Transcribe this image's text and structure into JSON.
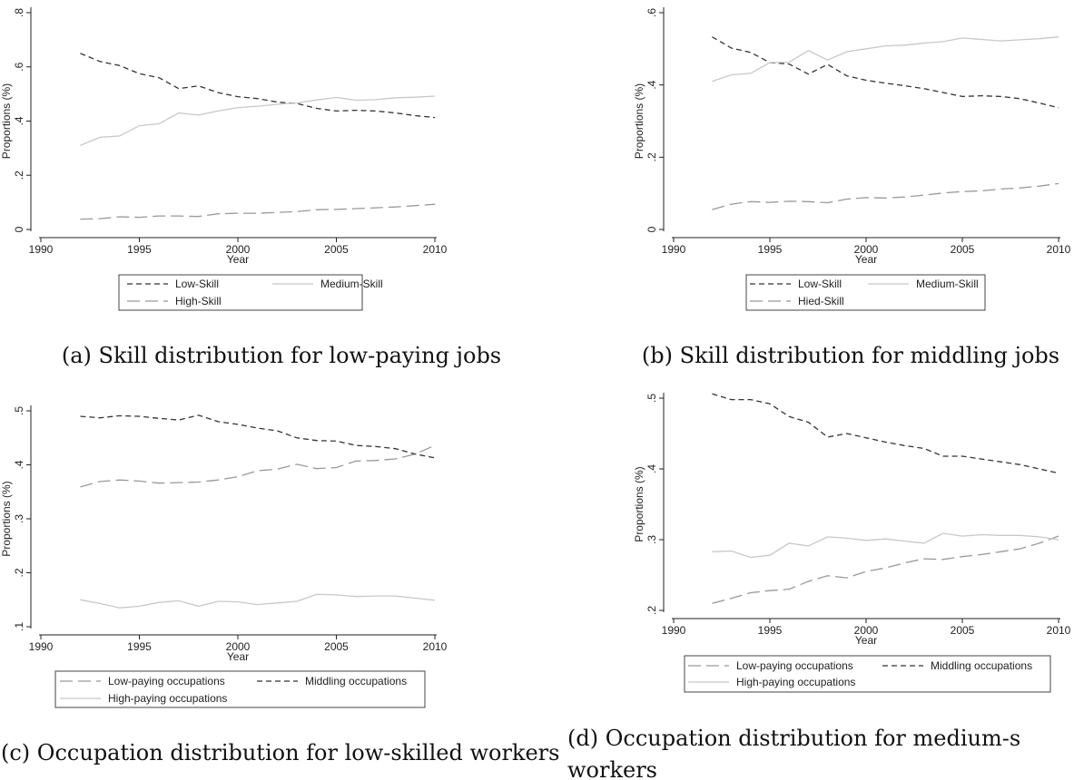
{
  "styles": {
    "dark_dash": "#333333",
    "light_solid": "#c8c8c8",
    "long_dash": "#999999"
  },
  "chart_data": [
    {
      "id": "a",
      "type": "line",
      "caption": "(a) Skill distribution for low-paying jobs",
      "xlabel": "Year",
      "ylabel": "Proportions (%)",
      "xlim": [
        1990,
        2010
      ],
      "ylim": [
        0,
        0.8
      ],
      "xticks": [
        1990,
        1995,
        2000,
        2005,
        2010
      ],
      "xtick_labels": [
        "1990",
        "1995",
        "2000",
        "2005",
        "2010"
      ],
      "yticks": [
        0,
        0.2,
        0.4,
        0.6,
        0.8
      ],
      "ytick_labels": [
        "0",
        ".2",
        ".4",
        ".6",
        ".8"
      ],
      "x": [
        1992,
        1993,
        1994,
        1995,
        1996,
        1997,
        1998,
        1999,
        2000,
        2001,
        2002,
        2003,
        2004,
        2005,
        2006,
        2007,
        2008,
        2009,
        2010
      ],
      "series": [
        {
          "name": "Low-Skill",
          "style": "dark_dash",
          "values": [
            0.65,
            0.62,
            0.605,
            0.575,
            0.56,
            0.52,
            0.53,
            0.505,
            0.49,
            0.483,
            0.47,
            0.465,
            0.447,
            0.437,
            0.44,
            0.437,
            0.43,
            0.42,
            0.413
          ]
        },
        {
          "name": "Medium-Skill",
          "style": "light_solid",
          "values": [
            0.31,
            0.34,
            0.345,
            0.383,
            0.39,
            0.43,
            0.422,
            0.437,
            0.45,
            0.455,
            0.462,
            0.467,
            0.478,
            0.487,
            0.477,
            0.479,
            0.486,
            0.488,
            0.492
          ]
        },
        {
          "name": "High-Skill",
          "style": "long_dash",
          "values": [
            0.038,
            0.04,
            0.047,
            0.045,
            0.05,
            0.05,
            0.048,
            0.058,
            0.06,
            0.06,
            0.063,
            0.066,
            0.073,
            0.074,
            0.077,
            0.08,
            0.083,
            0.088,
            0.093
          ]
        }
      ],
      "legend": [
        "Low-Skill",
        "Medium-Skill",
        "High-Skill"
      ]
    },
    {
      "id": "b",
      "type": "line",
      "caption": "(b) Skill distribution for middling jobs",
      "xlabel": "Year",
      "ylabel": "Proportions (%)",
      "xlim": [
        1990,
        2010
      ],
      "ylim": [
        0,
        0.6
      ],
      "xticks": [
        1990,
        1995,
        2000,
        2005,
        2010
      ],
      "xtick_labels": [
        "1990",
        "1995",
        "2000",
        "2005",
        "2010"
      ],
      "yticks": [
        0,
        0.2,
        0.4,
        0.6
      ],
      "ytick_labels": [
        "0",
        ".2",
        ".4",
        ".6"
      ],
      "x": [
        1992,
        1993,
        1994,
        1995,
        1996,
        1997,
        1998,
        1999,
        2000,
        2001,
        2002,
        2003,
        2004,
        2005,
        2006,
        2007,
        2008,
        2009,
        2010
      ],
      "series": [
        {
          "name": "Low-Skill",
          "style": "dark_dash",
          "values": [
            0.533,
            0.502,
            0.49,
            0.462,
            0.458,
            0.43,
            0.457,
            0.425,
            0.413,
            0.405,
            0.398,
            0.39,
            0.379,
            0.368,
            0.37,
            0.368,
            0.362,
            0.35,
            0.337
          ]
        },
        {
          "name": "Medium-Skill",
          "style": "light_solid",
          "values": [
            0.41,
            0.428,
            0.432,
            0.462,
            0.463,
            0.495,
            0.469,
            0.492,
            0.5,
            0.508,
            0.51,
            0.516,
            0.52,
            0.53,
            0.526,
            0.522,
            0.525,
            0.528,
            0.533
          ]
        },
        {
          "name": "Hied-Skill",
          "style": "long_dash",
          "values": [
            0.055,
            0.07,
            0.077,
            0.075,
            0.078,
            0.077,
            0.074,
            0.084,
            0.088,
            0.087,
            0.09,
            0.095,
            0.101,
            0.105,
            0.107,
            0.112,
            0.115,
            0.12,
            0.127
          ]
        }
      ],
      "legend": [
        "Low-Skill",
        "Medium-Skill",
        "Hied-Skill"
      ]
    },
    {
      "id": "c",
      "type": "line",
      "caption": "(c) Occupation distribution for low-skilled workers",
      "xlabel": "Year",
      "ylabel": "Proportions (%)",
      "xlim": [
        1990,
        2010
      ],
      "ylim": [
        0.1,
        0.5
      ],
      "xticks": [
        1990,
        1995,
        2000,
        2005,
        2010
      ],
      "xtick_labels": [
        "1990",
        "1995",
        "2000",
        "2005",
        "2010"
      ],
      "yticks": [
        0.1,
        0.2,
        0.3,
        0.4,
        0.5
      ],
      "ytick_labels": [
        ".1",
        ".2",
        ".3",
        ".4",
        ".5"
      ],
      "x": [
        1992,
        1993,
        1994,
        1995,
        1996,
        1997,
        1998,
        1999,
        2000,
        2001,
        2002,
        2003,
        2004,
        2005,
        2006,
        2007,
        2008,
        2009,
        2010
      ],
      "series": [
        {
          "name": "Low-paying occupations",
          "style": "long_dash",
          "values": [
            0.359,
            0.369,
            0.372,
            0.37,
            0.366,
            0.367,
            0.368,
            0.372,
            0.378,
            0.389,
            0.392,
            0.401,
            0.393,
            0.395,
            0.407,
            0.408,
            0.411,
            0.42,
            0.436
          ]
        },
        {
          "name": "Middling occupations",
          "style": "dark_dash",
          "values": [
            0.49,
            0.487,
            0.491,
            0.49,
            0.486,
            0.483,
            0.492,
            0.48,
            0.475,
            0.468,
            0.463,
            0.45,
            0.445,
            0.444,
            0.436,
            0.434,
            0.43,
            0.42,
            0.413
          ]
        },
        {
          "name": "High-paying occupations",
          "style": "light_solid",
          "values": [
            0.15,
            0.143,
            0.135,
            0.138,
            0.145,
            0.148,
            0.138,
            0.147,
            0.146,
            0.141,
            0.144,
            0.147,
            0.16,
            0.159,
            0.156,
            0.157,
            0.157,
            0.153,
            0.149
          ]
        }
      ],
      "legend": [
        "Low-paying occupations",
        "Middling occupations",
        "High-paying occupations"
      ]
    },
    {
      "id": "d",
      "type": "line",
      "caption": "(d) Occupation distribution for medium-s",
      "caption2": "workers",
      "xlabel": "Year",
      "ylabel": "Proportions (%)",
      "xlim": [
        1990,
        2010
      ],
      "ylim": [
        0.2,
        0.5
      ],
      "xticks": [
        1990,
        1995,
        2000,
        2005,
        2010
      ],
      "xtick_labels": [
        "1990",
        "1995",
        "2000",
        "2005",
        "2010"
      ],
      "yticks": [
        0.2,
        0.3,
        0.4,
        0.5
      ],
      "ytick_labels": [
        ".2",
        ".3",
        ".4",
        ".5"
      ],
      "x": [
        1992,
        1993,
        1994,
        1995,
        1996,
        1997,
        1998,
        1999,
        2000,
        2001,
        2002,
        2003,
        2004,
        2005,
        2006,
        2007,
        2008,
        2009,
        2010
      ],
      "series": [
        {
          "name": "Low-paying occupations",
          "style": "long_dash",
          "values": [
            0.21,
            0.217,
            0.225,
            0.228,
            0.23,
            0.241,
            0.249,
            0.246,
            0.255,
            0.26,
            0.267,
            0.273,
            0.272,
            0.276,
            0.279,
            0.283,
            0.287,
            0.295,
            0.305
          ]
        },
        {
          "name": "Middling occupations",
          "style": "dark_dash",
          "values": [
            0.506,
            0.498,
            0.498,
            0.492,
            0.474,
            0.466,
            0.445,
            0.45,
            0.444,
            0.438,
            0.433,
            0.429,
            0.418,
            0.418,
            0.414,
            0.41,
            0.406,
            0.4,
            0.394
          ]
        },
        {
          "name": "High-paying occupations",
          "style": "light_solid",
          "values": [
            0.283,
            0.284,
            0.275,
            0.278,
            0.295,
            0.291,
            0.304,
            0.302,
            0.299,
            0.301,
            0.298,
            0.295,
            0.309,
            0.305,
            0.307,
            0.306,
            0.306,
            0.304,
            0.3
          ]
        }
      ],
      "legend": [
        "Low-paying occupations",
        "Middling occupations",
        "High-paying occupations"
      ]
    }
  ]
}
